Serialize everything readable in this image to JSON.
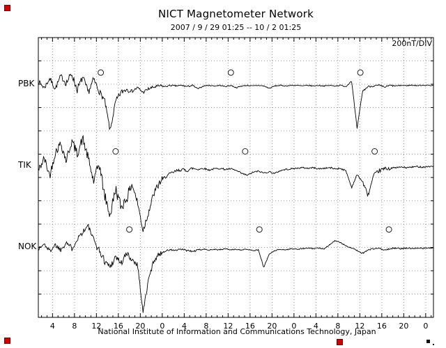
{
  "page": {
    "background": "#ffffff",
    "accent_red": "#d40000",
    "trace_color": "#000000",
    "grid_color": "#999999"
  },
  "chart_data": {
    "type": "line",
    "title": "NICT Magnetometer Network",
    "subtitle": "2007 / 9 / 29  01:25 -- 10 / 2  01:25",
    "scale_label": "200nT/DIV",
    "footer": "National Institute of Information and Communications Technology, Japan",
    "x_axis": {
      "start_hour": 1.4167,
      "end_hour": 73.4167,
      "major_tick_hours": 4,
      "minor_tick_hours": 1,
      "ticks": [
        {
          "hour": 4,
          "label": "4"
        },
        {
          "hour": 8,
          "label": "8"
        },
        {
          "hour": 12,
          "label": "12"
        },
        {
          "hour": 16,
          "label": "16"
        },
        {
          "hour": 20,
          "label": "20"
        },
        {
          "hour": 24,
          "label": "0"
        },
        {
          "hour": 28,
          "label": "4"
        },
        {
          "hour": 32,
          "label": "8"
        },
        {
          "hour": 36,
          "label": "12"
        },
        {
          "hour": 40,
          "label": "16"
        },
        {
          "hour": 44,
          "label": "20"
        },
        {
          "hour": 48,
          "label": "0"
        },
        {
          "hour": 52,
          "label": "4"
        },
        {
          "hour": 56,
          "label": "8"
        },
        {
          "hour": 60,
          "label": "12"
        },
        {
          "hour": 64,
          "label": "16"
        },
        {
          "hour": 68,
          "label": "20"
        },
        {
          "hour": 72,
          "label": "0"
        }
      ]
    },
    "y_axis": {
      "div_nT": 200,
      "divisions": 12,
      "grid": "dotted"
    },
    "stations": [
      {
        "name": "PBK",
        "baseline_div": 2.0,
        "marker_offset_div": 0.5,
        "noon_marker_hours": [
          12.8,
          36.5,
          60.1
        ],
        "sample_start_hour": 1.5,
        "sample_step_hours": 1,
        "seed": 7,
        "values_nT": [
          20,
          -30,
          50,
          -40,
          70,
          10,
          90,
          -50,
          60,
          -70,
          40,
          -60,
          -140,
          -400,
          -150,
          -70,
          -40,
          -60,
          -30,
          -70,
          -40,
          -25,
          -15,
          -20,
          -10,
          -15,
          -10,
          -20,
          -10,
          -40,
          -15,
          -10,
          -15,
          -10,
          -20,
          -10,
          -30,
          -15,
          -10,
          -15,
          -10,
          -15,
          -35,
          -15,
          -10,
          -15,
          -10,
          -10,
          -15,
          -10,
          -15,
          -10,
          -15,
          -10,
          -15,
          -10,
          -20,
          30,
          -380,
          -60,
          -20,
          -15,
          -10,
          -25,
          -10,
          -15,
          -10,
          -12,
          -8,
          -12,
          -8,
          -10,
          -10
        ],
        "noise_nT": [
          40,
          55,
          45,
          25,
          12,
          8,
          8,
          8,
          8,
          8,
          14,
          8,
          8
        ]
      },
      {
        "name": "TIK",
        "baseline_div": 5.48,
        "marker_offset_div": 0.6,
        "noon_marker_hours": [
          15.5,
          39.1,
          62.7
        ],
        "sample_start_hour": 1.5,
        "sample_step_hours": 1,
        "seed": 42,
        "values_nT": [
          -40,
          60,
          -90,
          110,
          190,
          40,
          210,
          100,
          230,
          60,
          -140,
          20,
          -260,
          -430,
          -200,
          -360,
          -280,
          -160,
          -320,
          -560,
          -400,
          -240,
          -150,
          -100,
          -70,
          -50,
          -35,
          -45,
          -25,
          -35,
          -25,
          -40,
          -30,
          -25,
          -35,
          -30,
          -45,
          -70,
          -85,
          -60,
          -50,
          -65,
          -55,
          -70,
          -45,
          -35,
          -30,
          -25,
          -20,
          -25,
          -20,
          -30,
          -25,
          -20,
          -30,
          -25,
          -50,
          -190,
          -80,
          -140,
          -260,
          -90,
          -45,
          -30,
          -25,
          -20,
          -15,
          -20,
          -15,
          -10,
          -15,
          -10,
          -10
        ],
        "noise_nT": [
          65,
          75,
          85,
          60,
          25,
          14,
          12,
          12,
          12,
          14,
          30,
          12,
          10
        ]
      },
      {
        "name": "NOK",
        "baseline_div": 8.98,
        "marker_offset_div": 0.75,
        "noon_marker_hours": [
          18.0,
          41.7,
          65.3
        ],
        "sample_start_hour": 1.5,
        "sample_step_hours": 1,
        "seed": 1337,
        "values_nT": [
          -15,
          25,
          -35,
          20,
          -25,
          45,
          -15,
          70,
          130,
          180,
          60,
          -30,
          -120,
          -170,
          -80,
          -140,
          -60,
          -110,
          -150,
          -560,
          -280,
          -110,
          -60,
          -35,
          -25,
          -30,
          -20,
          -30,
          -40,
          -25,
          -20,
          -25,
          -20,
          -25,
          -15,
          -25,
          -20,
          -25,
          -20,
          -30,
          -25,
          -175,
          -60,
          -30,
          -20,
          -25,
          -15,
          -20,
          -15,
          -10,
          -15,
          -10,
          -15,
          20,
          55,
          35,
          10,
          -10,
          -30,
          -55,
          -25,
          -15,
          -10,
          -30,
          -15,
          -10,
          -15,
          -10,
          -12,
          -8,
          -12,
          -8,
          -10
        ],
        "noise_nT": [
          35,
          45,
          55,
          40,
          15,
          10,
          8,
          8,
          8,
          8,
          12,
          10,
          8
        ]
      }
    ]
  }
}
